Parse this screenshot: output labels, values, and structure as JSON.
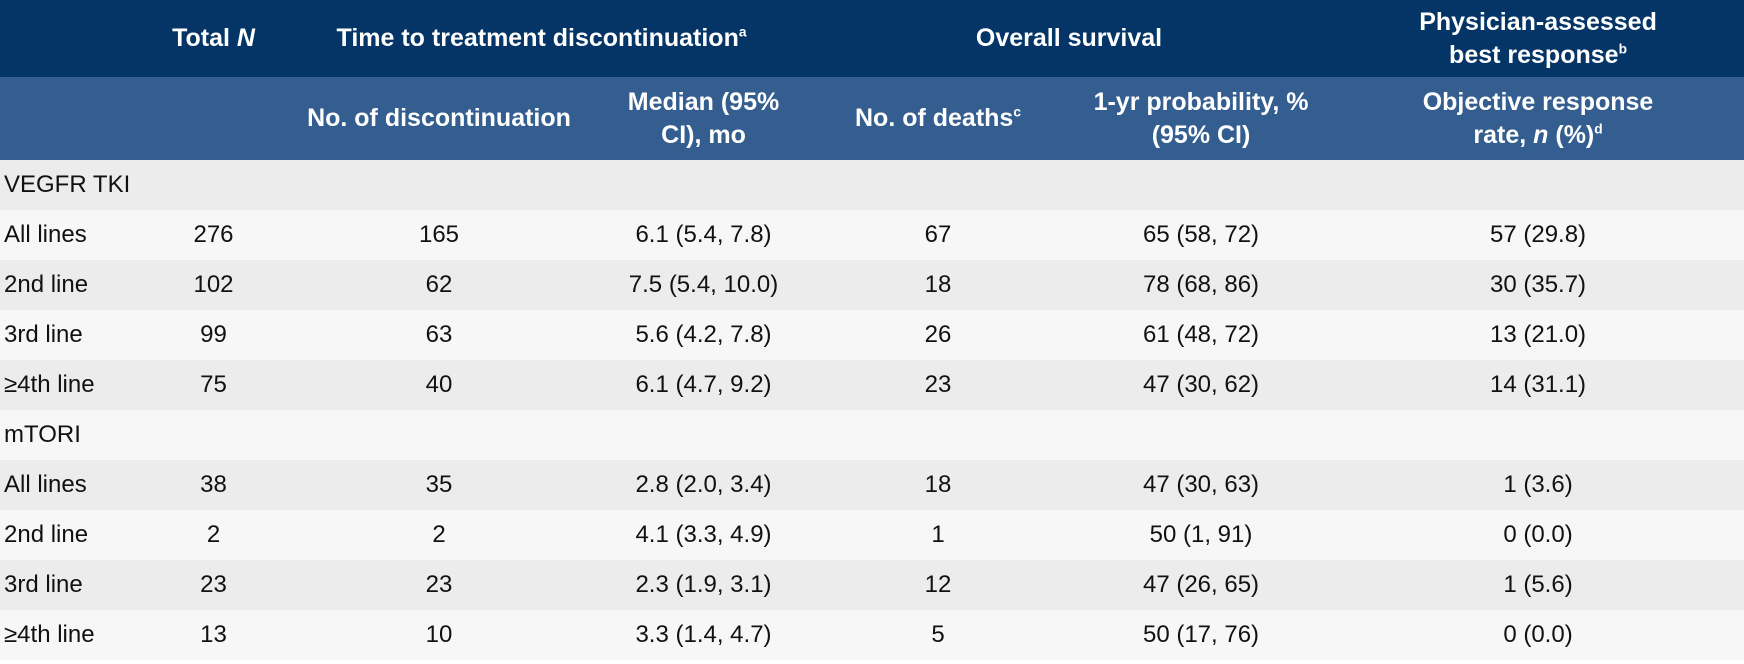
{
  "header": {
    "top": {
      "total_n_prefix": "Total ",
      "total_n_italic": "N",
      "ttd": "Time to treatment discontinuation",
      "ttd_sup": "a",
      "os": "Overall survival",
      "best_response_line1": "Physician-assessed",
      "best_response_line2": "best response",
      "best_response_sup": "b"
    },
    "sub": {
      "n_discontinuation": "No. of discontinuation",
      "median": "Median (95% CI), mo",
      "deaths": "No. of deaths",
      "deaths_sup": "c",
      "prob_line1": "1-yr probability, %",
      "prob_line2": "(95% CI)",
      "orr_line1": "Objective response",
      "orr_line2_prefix": "rate, ",
      "orr_line2_italic": "n",
      "orr_line2_suffix": " (%)",
      "orr_sup": "d"
    }
  },
  "rows": [
    {
      "section": "VEGFR TKI"
    },
    {
      "cells": [
        "All lines",
        "276",
        "165",
        "6.1 (5.4, 7.8)",
        "67",
        "65 (58, 72)",
        "57 (29.8)"
      ]
    },
    {
      "cells": [
        "2nd line",
        "102",
        "62",
        "7.5 (5.4, 10.0)",
        "18",
        "78 (68, 86)",
        "30 (35.7)"
      ]
    },
    {
      "cells": [
        "3rd line",
        "99",
        "63",
        "5.6 (4.2, 7.8)",
        "26",
        "61 (48, 72)",
        "13 (21.0)"
      ]
    },
    {
      "cells": [
        "≥4th line",
        "75",
        "40",
        "6.1 (4.7, 9.2)",
        "23",
        "47 (30, 62)",
        "14 (31.1)"
      ]
    },
    {
      "section": "mTORI"
    },
    {
      "cells": [
        "All lines",
        "38",
        "35",
        "2.8 (2.0, 3.4)",
        "18",
        "47 (30, 63)",
        "1 (3.6)"
      ]
    },
    {
      "cells": [
        "2nd line",
        "2",
        "2",
        "4.1 (3.3, 4.9)",
        "1",
        "50 (1, 91)",
        "0 (0.0)"
      ]
    },
    {
      "cells": [
        "3rd line",
        "23",
        "23",
        "2.3 (1.9, 3.1)",
        "12",
        "47 (26, 65)",
        "1 (5.6)"
      ]
    },
    {
      "cells": [
        "≥4th line",
        "13",
        "10",
        "3.3 (1.4, 4.7)",
        "5",
        "50 (17, 76)",
        "0 (0.0)"
      ]
    }
  ],
  "colors": {
    "header_top": "#043566",
    "header_sub": "#345e90",
    "row_odd": "#ececec",
    "row_even": "#f7f7f7"
  }
}
